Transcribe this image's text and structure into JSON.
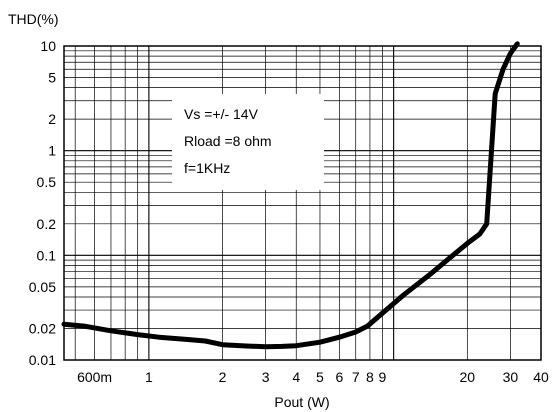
{
  "chart_data": {
    "type": "line",
    "title": "",
    "ylabel": "THD(%)",
    "xlabel": "Pout (W)",
    "x_scale": "log",
    "y_scale": "log",
    "xlim": [
      0.45,
      40
    ],
    "ylim": [
      0.01,
      10
    ],
    "grid": true,
    "x_ticks": [
      {
        "value": 0.6,
        "label": "600m"
      },
      {
        "value": 1,
        "label": "1"
      },
      {
        "value": 2,
        "label": "2"
      },
      {
        "value": 3,
        "label": "3"
      },
      {
        "value": 4,
        "label": "4"
      },
      {
        "value": 5,
        "label": "5"
      },
      {
        "value": 6,
        "label": "6"
      },
      {
        "value": 7,
        "label": "7"
      },
      {
        "value": 8,
        "label": "8"
      },
      {
        "value": 9,
        "label": "9"
      },
      {
        "value": 20,
        "label": "20"
      },
      {
        "value": 30,
        "label": "30"
      },
      {
        "value": 40,
        "label": "40"
      }
    ],
    "y_ticks": [
      {
        "value": 10,
        "label": "10"
      },
      {
        "value": 5,
        "label": "5"
      },
      {
        "value": 2,
        "label": "2"
      },
      {
        "value": 1,
        "label": "1"
      },
      {
        "value": 0.5,
        "label": "0.5"
      },
      {
        "value": 0.2,
        "label": "0.2"
      },
      {
        "value": 0.1,
        "label": "0.1"
      },
      {
        "value": 0.05,
        "label": "0.05"
      },
      {
        "value": 0.02,
        "label": "0.02"
      },
      {
        "value": 0.01,
        "label": "0.01"
      }
    ],
    "annotations": [
      "Vs =+/- 14V",
      "Rload =8 ohm",
      "f=1KHz"
    ],
    "series": [
      {
        "color": "#000000",
        "x": [
          0.45,
          0.55,
          0.7,
          0.9,
          1.1,
          1.4,
          1.7,
          2.0,
          2.5,
          3.0,
          3.5,
          4.0,
          5.0,
          6.0,
          7.0,
          7.8,
          9.0,
          11,
          14,
          17,
          20,
          22.5,
          24,
          26,
          28,
          30,
          32
        ],
        "y": [
          0.022,
          0.021,
          0.019,
          0.0175,
          0.0165,
          0.0158,
          0.0152,
          0.014,
          0.0136,
          0.0134,
          0.0135,
          0.0137,
          0.0148,
          0.0165,
          0.0185,
          0.021,
          0.028,
          0.042,
          0.065,
          0.095,
          0.13,
          0.16,
          0.2,
          3.5,
          6.0,
          8.5,
          10.5
        ]
      }
    ]
  }
}
